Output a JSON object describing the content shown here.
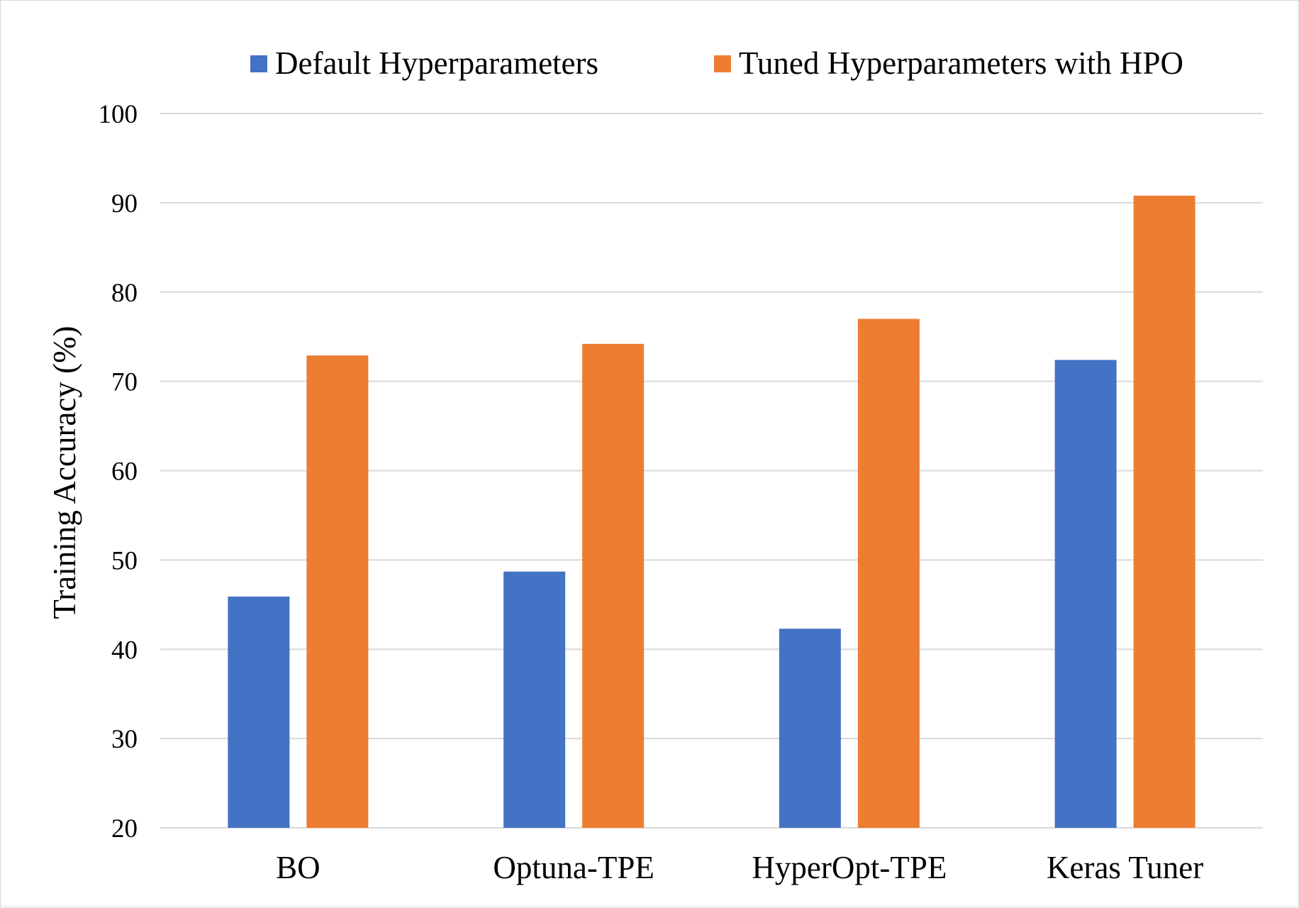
{
  "chart_data": {
    "type": "bar",
    "title": "",
    "xlabel": "",
    "ylabel": "Training Accuracy (%)",
    "ylim": [
      20,
      100
    ],
    "yticks": [
      20,
      30,
      40,
      50,
      60,
      70,
      80,
      90,
      100
    ],
    "grid": true,
    "legend_position": "top",
    "categories": [
      "BO",
      "Optuna-TPE",
      "HyperOpt-TPE",
      "Keras Tuner"
    ],
    "series": [
      {
        "name": "Default Hyperparameters",
        "color": "#4472c4",
        "values": [
          45.9,
          48.7,
          42.3,
          72.4
        ]
      },
      {
        "name": "Tuned Hyperparameters with HPO",
        "color": "#ed7d31",
        "values": [
          72.9,
          74.2,
          77.0,
          90.8
        ]
      }
    ]
  }
}
